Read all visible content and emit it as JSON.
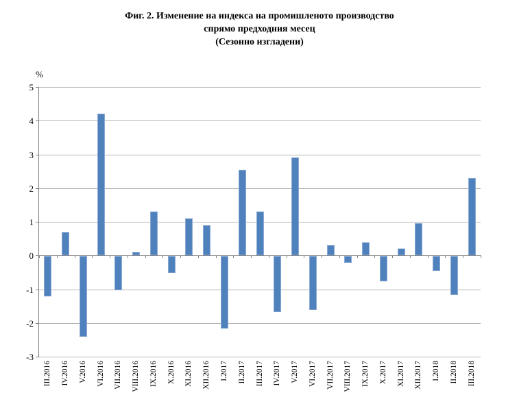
{
  "chart_data": {
    "type": "bar",
    "title_lines": [
      "Фиг. 2. Изменение на индекса на промишленото производство",
      "спрямо предходния месец",
      "(Сезонно изгладени)"
    ],
    "unit_label": "%",
    "categories": [
      "III.2016",
      "IV.2016",
      "V.2016",
      "VI.2016",
      "VII.2016",
      "VIII.2016",
      "IX.2016",
      "X.2016",
      "XI.2016",
      "XII.2016",
      "I.2017",
      "II.2017",
      "III.2017",
      "IV.2017",
      "V.2017",
      "VI.2017",
      "VII.2017",
      "VIII.2017",
      "IX.2017",
      "X.2017",
      "XI.2017",
      "XII.2017",
      "I.2018",
      "II.2018",
      "III.2018"
    ],
    "values": [
      -1.2,
      0.7,
      -2.4,
      4.2,
      -1.0,
      0.1,
      1.3,
      -0.5,
      1.1,
      0.9,
      -2.15,
      2.55,
      1.3,
      -1.65,
      2.9,
      -1.6,
      0.3,
      -0.2,
      0.4,
      -0.75,
      0.2,
      0.95,
      -0.45,
      -1.15,
      2.3
    ],
    "xlabel": "",
    "ylabel": "%",
    "ylim": [
      -3,
      5
    ],
    "yticks": [
      5,
      4,
      3,
      2,
      1,
      0,
      -1,
      -2,
      -3
    ],
    "grid": true,
    "legend": false,
    "x_labels_rotated_90": true,
    "bar_color": "#4f81bd",
    "gridline_color": "#b2b2b2",
    "axis_color": "#7f7f7f"
  }
}
